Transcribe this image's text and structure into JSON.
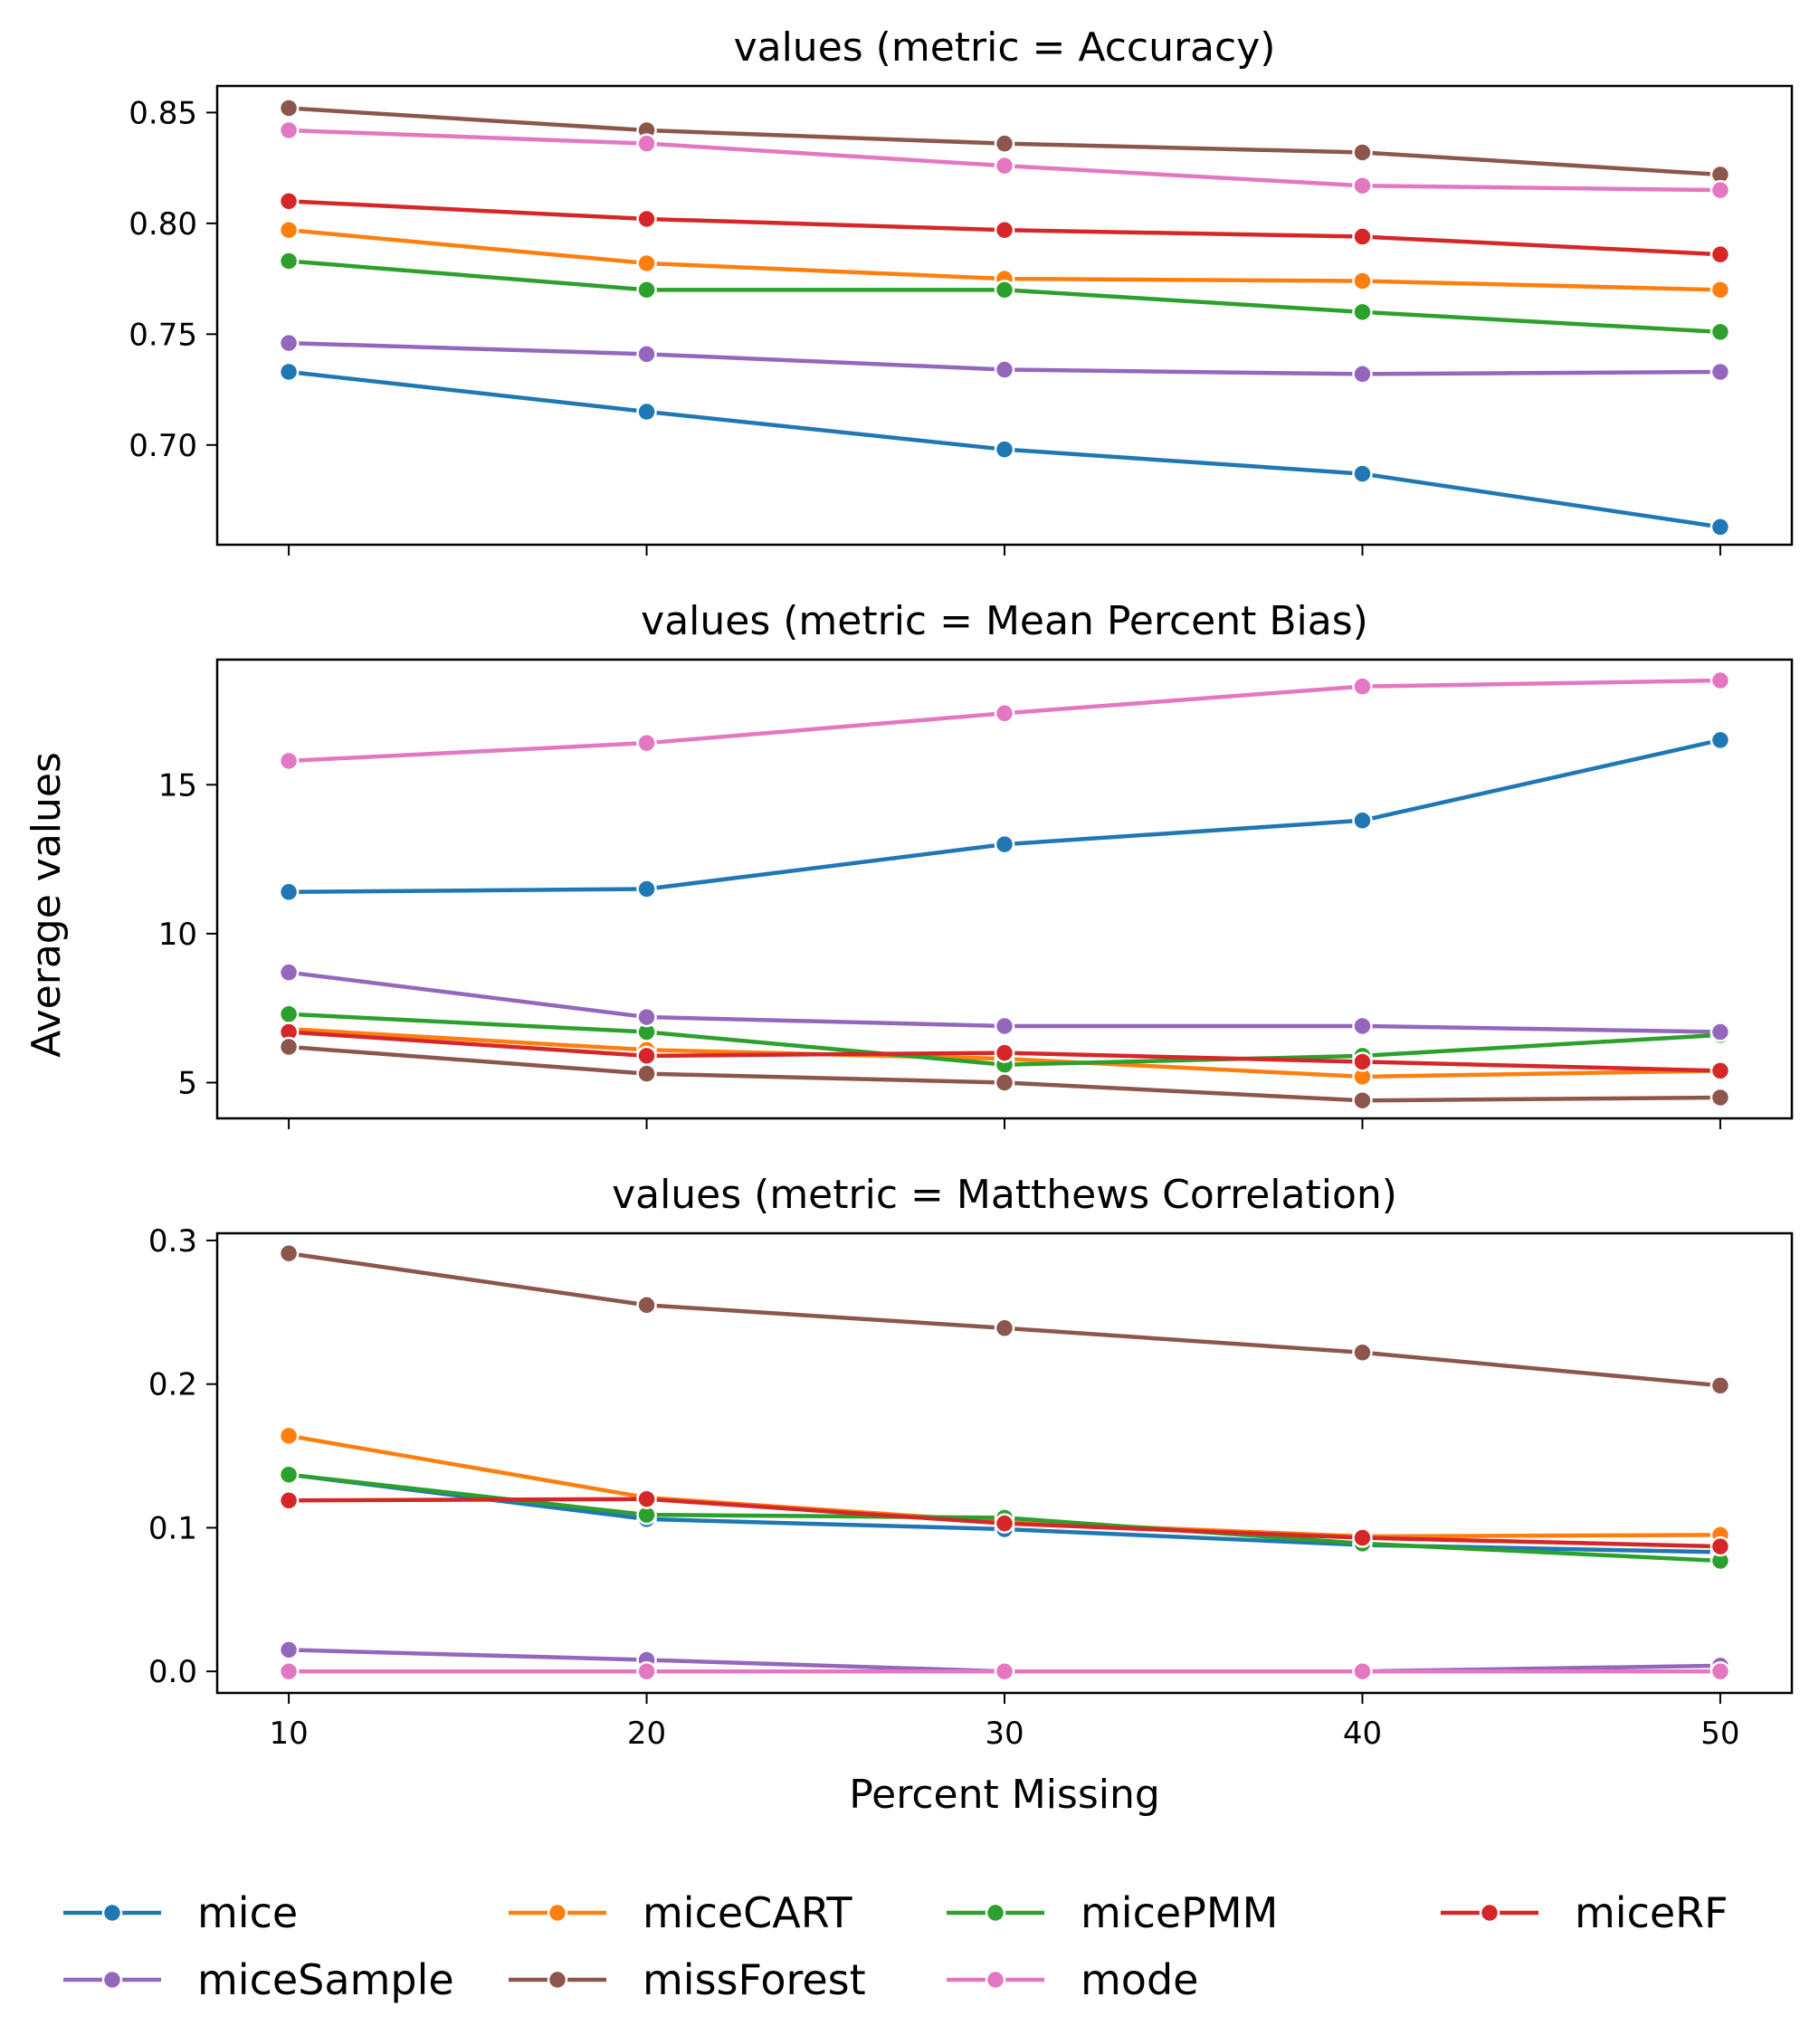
{
  "chart_data": {
    "type": "line",
    "x": [
      10,
      20,
      30,
      40,
      50
    ],
    "xlabel": "Percent Missing",
    "ylabel": "Average values",
    "legend": {
      "placement": "bottom",
      "entries": [
        "mice",
        "miceCART",
        "micePMM",
        "miceRF",
        "miceSample",
        "missForest",
        "mode"
      ]
    },
    "colors": {
      "mice": "#1f77b4",
      "miceCART": "#ff7f0e",
      "micePMM": "#2ca02c",
      "miceRF": "#d62728",
      "miceSample": "#9467bd",
      "missForest": "#8c564b",
      "mode": "#e377c2"
    },
    "panels": [
      {
        "title": "values (metric = Accuracy)",
        "ylim": [
          0.655,
          0.862
        ],
        "yticks": [
          0.7,
          0.75,
          0.8,
          0.85
        ],
        "ytick_labels": [
          "0.70",
          "0.75",
          "0.80",
          "0.85"
        ],
        "series": [
          {
            "name": "mice",
            "values": [
              0.733,
              0.715,
              0.698,
              0.687,
              0.663
            ]
          },
          {
            "name": "miceCART",
            "values": [
              0.797,
              0.782,
              0.775,
              0.774,
              0.77
            ]
          },
          {
            "name": "micePMM",
            "values": [
              0.783,
              0.77,
              0.77,
              0.76,
              0.751
            ]
          },
          {
            "name": "miceRF",
            "values": [
              0.81,
              0.802,
              0.797,
              0.794,
              0.786
            ]
          },
          {
            "name": "miceSample",
            "values": [
              0.746,
              0.741,
              0.734,
              0.732,
              0.733
            ]
          },
          {
            "name": "missForest",
            "values": [
              0.852,
              0.842,
              0.836,
              0.832,
              0.822
            ]
          },
          {
            "name": "mode",
            "values": [
              0.842,
              0.836,
              0.826,
              0.817,
              0.815
            ]
          }
        ]
      },
      {
        "title": "values (metric = Mean Percent Bias)",
        "ylim": [
          3.8,
          19.2
        ],
        "yticks": [
          5,
          10,
          15
        ],
        "ytick_labels": [
          "5",
          "10",
          "15"
        ],
        "series": [
          {
            "name": "mice",
            "values": [
              11.4,
              11.5,
              13.0,
              13.8,
              16.5
            ]
          },
          {
            "name": "miceCART",
            "values": [
              6.8,
              6.1,
              5.8,
              5.2,
              5.4
            ]
          },
          {
            "name": "micePMM",
            "values": [
              7.3,
              6.7,
              5.6,
              5.9,
              6.6
            ]
          },
          {
            "name": "miceRF",
            "values": [
              6.7,
              5.9,
              6.0,
              5.7,
              5.4
            ]
          },
          {
            "name": "miceSample",
            "values": [
              8.7,
              7.2,
              6.9,
              6.9,
              6.7
            ]
          },
          {
            "name": "missForest",
            "values": [
              6.2,
              5.3,
              5.0,
              4.4,
              4.5
            ]
          },
          {
            "name": "mode",
            "values": [
              15.8,
              16.4,
              17.4,
              18.3,
              18.5
            ]
          }
        ]
      },
      {
        "title": "values (metric = Matthews Correlation)",
        "ylim": [
          -0.015,
          0.305
        ],
        "yticks": [
          0.0,
          0.1,
          0.2,
          0.3
        ],
        "ytick_labels": [
          "0.0",
          "0.1",
          "0.2",
          "0.3"
        ],
        "series": [
          {
            "name": "mice",
            "values": [
              0.137,
              0.106,
              0.099,
              0.088,
              0.083
            ]
          },
          {
            "name": "miceCART",
            "values": [
              0.164,
              0.121,
              0.104,
              0.094,
              0.095
            ]
          },
          {
            "name": "micePMM",
            "values": [
              0.137,
              0.109,
              0.107,
              0.089,
              0.077
            ]
          },
          {
            "name": "miceRF",
            "values": [
              0.119,
              0.12,
              0.103,
              0.093,
              0.087
            ]
          },
          {
            "name": "miceSample",
            "values": [
              0.015,
              0.008,
              0.0,
              0.0,
              0.004
            ]
          },
          {
            "name": "missForest",
            "values": [
              0.291,
              0.255,
              0.239,
              0.222,
              0.199
            ]
          },
          {
            "name": "mode",
            "values": [
              0.0,
              0.0,
              0.0,
              0.0,
              0.0
            ]
          }
        ]
      }
    ]
  }
}
